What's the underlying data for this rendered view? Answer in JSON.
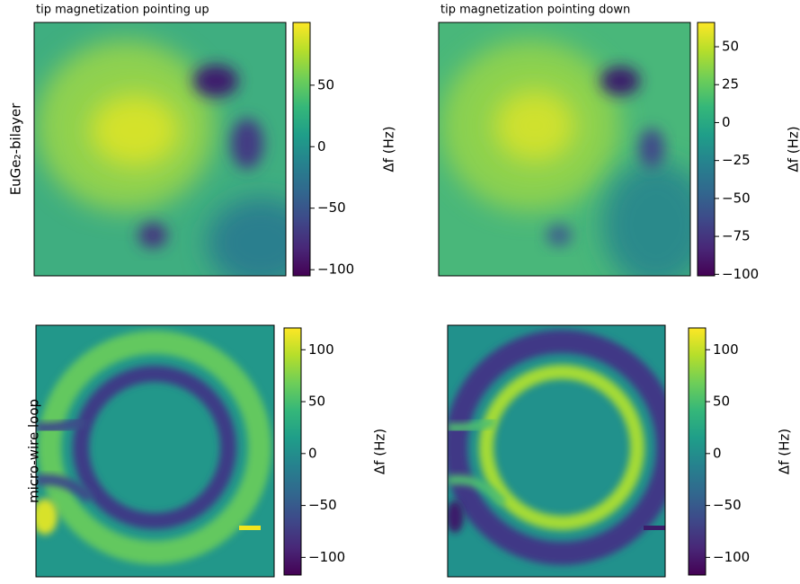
{
  "chart_data": [
    {
      "type": "heatmap",
      "title": "tip magnetization pointing up",
      "ylabel": "EuGe₂-bilayer",
      "colorbar_label": "Δf (Hz)",
      "cmap": "viridis",
      "clim": [
        -105,
        101
      ],
      "cticks": [
        50,
        0,
        {
          "value": -50,
          "label": "−50"
        },
        {
          "value": -100,
          "label": "−100"
        }
      ]
    },
    {
      "type": "heatmap",
      "title": "tip magnetization pointing down",
      "colorbar_label": "Δf (Hz)",
      "cmap": "viridis",
      "clim": [
        -101,
        66
      ],
      "cticks": [
        50,
        25,
        0,
        {
          "value": -25,
          "label": "−25"
        },
        {
          "value": -50,
          "label": "−50"
        },
        {
          "value": -75,
          "label": "−75"
        },
        {
          "value": -100,
          "label": "−100"
        }
      ]
    },
    {
      "type": "heatmap",
      "ylabel": "micro-wire loop",
      "colorbar_label": "Δf (Hz)",
      "cmap": "viridis",
      "clim": [
        -117,
        121
      ],
      "cticks": [
        100,
        50,
        0,
        {
          "value": -50,
          "label": "−50"
        },
        {
          "value": -100,
          "label": "−100"
        }
      ]
    },
    {
      "type": "heatmap",
      "colorbar_label": "Δf (Hz)",
      "cmap": "viridis",
      "clim": [
        -117,
        121
      ],
      "cticks": [
        100,
        50,
        0,
        {
          "value": -50,
          "label": "−50"
        },
        {
          "value": -100,
          "label": "−100"
        }
      ]
    }
  ]
}
